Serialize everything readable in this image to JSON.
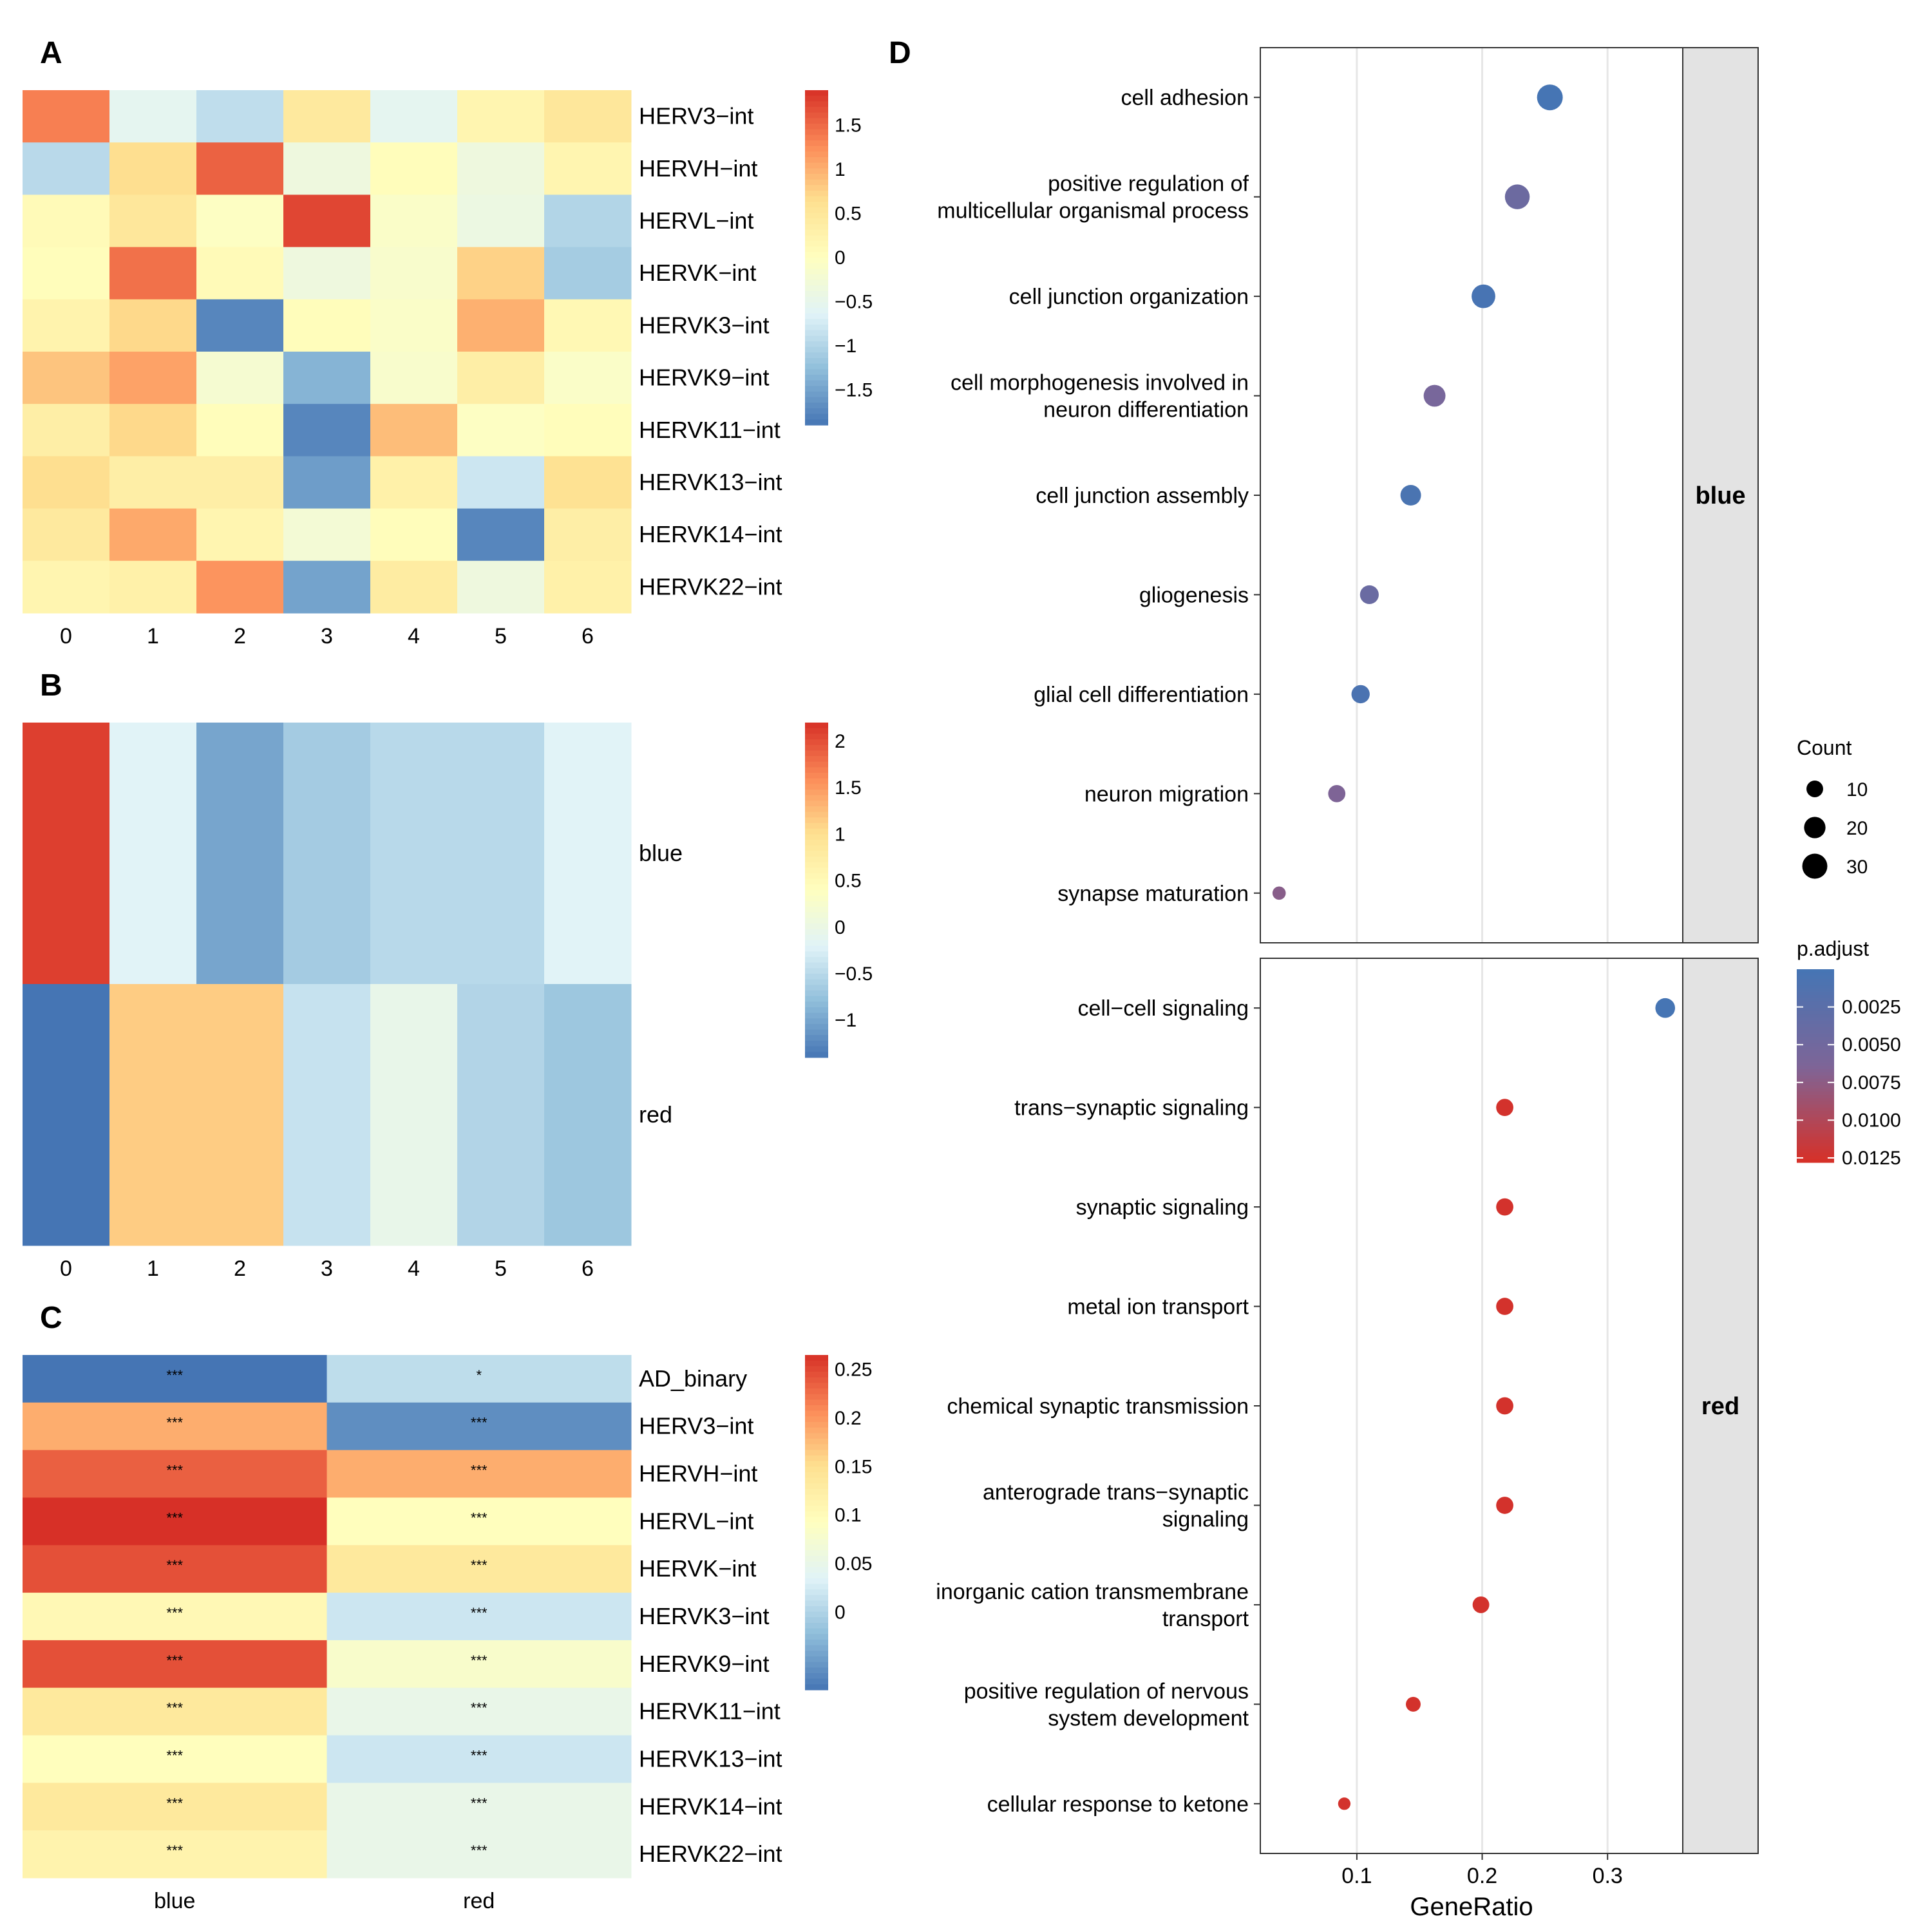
{
  "panels": {
    "A": "A",
    "B": "B",
    "C": "C",
    "D": "D"
  },
  "heatmap_A": {
    "columns": [
      "0",
      "1",
      "2",
      "3",
      "4",
      "5",
      "6"
    ],
    "rows": [
      "HERV3−int",
      "HERVH−int",
      "HERVL−int",
      "HERVK−int",
      "HERVK3−int",
      "HERVK9−int",
      "HERVK11−int",
      "HERVK13−int",
      "HERVK14−int",
      "HERVK22−int"
    ],
    "values": [
      [
        1.35,
        -0.55,
        -0.9,
        0.45,
        -0.55,
        0.2,
        0.5
      ],
      [
        -0.95,
        0.65,
        1.55,
        -0.35,
        0.05,
        -0.35,
        0.2
      ],
      [
        0.1,
        0.5,
        -0.05,
        1.75,
        -0.1,
        -0.4,
        -1.0
      ],
      [
        0.05,
        1.45,
        0.1,
        -0.35,
        -0.15,
        0.75,
        -1.1
      ],
      [
        0.25,
        0.7,
        -1.75,
        0.05,
        -0.1,
        1.0,
        0.15
      ],
      [
        0.85,
        1.1,
        -0.2,
        -1.35,
        -0.15,
        0.35,
        -0.1
      ],
      [
        0.35,
        0.7,
        0.05,
        -1.75,
        0.9,
        -0.05,
        0.05
      ],
      [
        0.65,
        0.35,
        0.35,
        -1.55,
        0.3,
        -0.8,
        0.6
      ],
      [
        0.45,
        1.05,
        0.2,
        -0.25,
        0.05,
        -1.75,
        0.35
      ],
      [
        0.2,
        0.3,
        1.2,
        -1.5,
        0.4,
        -0.35,
        0.3
      ]
    ],
    "legend_ticks": [
      1.5,
      1,
      0.5,
      0,
      -0.5,
      -1,
      -1.5
    ],
    "legend_tick_labels": [
      "1.5",
      "1",
      "0.5",
      "0",
      "−0.5",
      "−1",
      "−1.5"
    ],
    "range": [
      -1.9,
      1.9
    ]
  },
  "heatmap_B": {
    "columns": [
      "0",
      "1",
      "2",
      "3",
      "4",
      "5",
      "6"
    ],
    "rows": [
      "blue",
      "red"
    ],
    "values": [
      [
        2.1,
        -0.2,
        -1.0,
        -0.65,
        -0.5,
        -0.5,
        -0.2
      ],
      [
        -1.4,
        1.15,
        1.15,
        -0.4,
        -0.05,
        -0.55,
        -0.7
      ]
    ],
    "legend_ticks": [
      2,
      1.5,
      1,
      0.5,
      0,
      -0.5,
      -1
    ],
    "legend_tick_labels": [
      "2",
      "1.5",
      "1",
      "0.5",
      "0",
      "−0.5",
      "−1"
    ],
    "range": [
      -1.4,
      2.2
    ]
  },
  "heatmap_C": {
    "columns": [
      "blue",
      "red"
    ],
    "rows": [
      "AD_binary",
      "HERV3−int",
      "HERVH−int",
      "HERVL−int",
      "HERVK−int",
      "HERVK3−int",
      "HERVK9−int",
      "HERVK11−int",
      "HERVK13−int",
      "HERVK14−int",
      "HERVK22−int"
    ],
    "values": [
      [
        -0.08,
        0.01
      ],
      [
        0.185,
        -0.06
      ],
      [
        0.235,
        0.185
      ],
      [
        0.265,
        0.095
      ],
      [
        0.245,
        0.135
      ],
      [
        0.105,
        0.02
      ],
      [
        0.245,
        0.08
      ],
      [
        0.135,
        0.05
      ],
      [
        0.095,
        0.02
      ],
      [
        0.135,
        0.05
      ],
      [
        0.115,
        0.05
      ]
    ],
    "stars": [
      [
        "***",
        "*"
      ],
      [
        "***",
        "***"
      ],
      [
        "***",
        "***"
      ],
      [
        "***",
        "***"
      ],
      [
        "***",
        "***"
      ],
      [
        "***",
        "***"
      ],
      [
        "***",
        "***"
      ],
      [
        "***",
        "***"
      ],
      [
        "***",
        "***"
      ],
      [
        "***",
        "***"
      ],
      [
        "***",
        "***"
      ]
    ],
    "legend_ticks": [
      0.25,
      0.2,
      0.15,
      0.1,
      0.05,
      0
    ],
    "legend_tick_labels": [
      "0.25",
      "0.2",
      "0.15",
      "0.1",
      "0.05",
      "0"
    ],
    "range": [
      -0.08,
      0.265
    ]
  },
  "chart_data": {
    "type": "scatter",
    "title": "",
    "xlabel": "GeneRatio",
    "ylabel": "",
    "xlim": [
      0.023,
      0.36
    ],
    "x_ticks": [
      0.1,
      0.2,
      0.3
    ],
    "x_tick_labels": [
      "0.1",
      "0.2",
      "0.3"
    ],
    "facets": [
      {
        "strip": "blue",
        "terms": [
          {
            "label": [
              "cell adhesion"
            ],
            "x": 0.254,
            "count": 32,
            "padj": 0.0001
          },
          {
            "label": [
              "positive regulation of",
              "multicellular organismal process"
            ],
            "x": 0.228,
            "count": 29,
            "padj": 0.0045
          },
          {
            "label": [
              "cell junction organization"
            ],
            "x": 0.201,
            "count": 26,
            "padj": 0.0003
          },
          {
            "label": [
              "cell morphogenesis involved in",
              "neuron differentiation"
            ],
            "x": 0.162,
            "count": 21,
            "padj": 0.0058
          },
          {
            "label": [
              "cell junction assembly"
            ],
            "x": 0.143,
            "count": 18,
            "padj": 0.0006
          },
          {
            "label": [
              "gliogenesis"
            ],
            "x": 0.11,
            "count": 14,
            "padj": 0.0042
          },
          {
            "label": [
              "glial cell differentiation"
            ],
            "x": 0.103,
            "count": 13,
            "padj": 0.0007
          },
          {
            "label": [
              "neuron migration"
            ],
            "x": 0.084,
            "count": 11,
            "padj": 0.0065
          },
          {
            "label": [
              "synapse maturation"
            ],
            "x": 0.038,
            "count": 5,
            "padj": 0.0072
          }
        ]
      },
      {
        "strip": "red",
        "terms": [
          {
            "label": [
              "cell−cell signaling"
            ],
            "x": 0.346,
            "count": 16,
            "padj": 0.0001
          },
          {
            "label": [
              "trans−synaptic signaling"
            ],
            "x": 0.218,
            "count": 11,
            "padj": 0.0125
          },
          {
            "label": [
              "synaptic signaling"
            ],
            "x": 0.218,
            "count": 11,
            "padj": 0.0125
          },
          {
            "label": [
              "metal ion transport"
            ],
            "x": 0.218,
            "count": 11,
            "padj": 0.0125
          },
          {
            "label": [
              "chemical synaptic transmission"
            ],
            "x": 0.218,
            "count": 11,
            "padj": 0.0125
          },
          {
            "label": [
              "anterograde trans−synaptic",
              "signaling"
            ],
            "x": 0.218,
            "count": 11,
            "padj": 0.0125
          },
          {
            "label": [
              "inorganic cation transmembrane",
              "transport"
            ],
            "x": 0.199,
            "count": 10,
            "padj": 0.0125
          },
          {
            "label": [
              "positive regulation of nervous",
              "system development"
            ],
            "x": 0.145,
            "count": 7,
            "padj": 0.0125
          },
          {
            "label": [
              "cellular response to ketone"
            ],
            "x": 0.09,
            "count": 4,
            "padj": 0.0125
          }
        ]
      }
    ],
    "size_legend": {
      "title": "Count",
      "values": [
        10,
        20,
        30
      ],
      "labels": [
        "10",
        "20",
        "30"
      ]
    },
    "color_legend": {
      "title": "p.adjust",
      "ticks": [
        0.0025,
        0.005,
        0.0075,
        0.01,
        0.0125
      ],
      "labels": [
        "0.0025",
        "0.0050",
        "0.0075",
        "0.0100",
        "0.0125"
      ],
      "range": [
        0.0,
        0.0128
      ],
      "low_color": "#4575b4",
      "mid_color": "#7d6598",
      "high_color": "#d73027"
    }
  },
  "colors": {
    "heat_low": "#4575b4",
    "heat_mid": "#ffffbf",
    "heat_high": "#d73027",
    "strip_bg": "#e3e3e3",
    "grid": "#e6e6e6"
  }
}
